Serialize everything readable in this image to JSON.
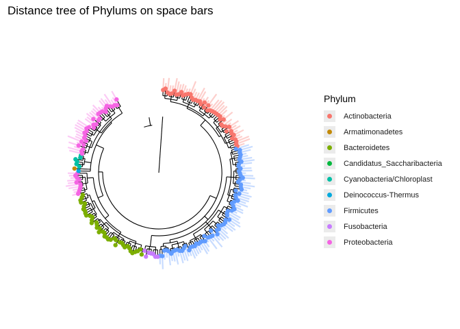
{
  "title": "Distance tree of Phylums on space bars",
  "legend": {
    "title": "Phylum",
    "position": "right",
    "items": [
      {
        "label": "Actinobacteria",
        "color": "#F8766D"
      },
      {
        "label": "Armatimonadetes",
        "color": "#C38A08"
      },
      {
        "label": "Bacteroidetes",
        "color": "#7CAE00"
      },
      {
        "label": "Candidatus_Saccharibacteria",
        "color": "#00B83E"
      },
      {
        "label": "Cyanobacteria/Chloroplast",
        "color": "#00BFA5"
      },
      {
        "label": "Deinococcus-Thermus",
        "color": "#00A9DD"
      },
      {
        "label": "Firmicutes",
        "color": "#619CFF"
      },
      {
        "label": "Fusobacteria",
        "color": "#C77CFF"
      },
      {
        "label": "Proteobacteria",
        "color": "#F564E3"
      }
    ]
  },
  "chart_data": {
    "type": "circular-phylogenetic-tree",
    "grid": false,
    "clades": [
      {
        "phylum": "Actinobacteria",
        "color": "#F8766D",
        "tips": 44,
        "has_bars": true
      },
      {
        "phylum": "Firmicutes",
        "color": "#619CFF",
        "tips": 68,
        "has_bars": true
      },
      {
        "phylum": "Fusobacteria",
        "color": "#C77CFF",
        "tips": 7,
        "has_bars": false
      },
      {
        "phylum": "Bacteroidetes",
        "color": "#7CAE00",
        "tips": 40,
        "has_bars": false
      },
      {
        "phylum": "Proteobacteria",
        "color": "#F564E3",
        "tips": 10,
        "has_bars": true
      },
      {
        "phylum": "Deinococcus-Thermus",
        "color": "#00A9DD",
        "tips": 1,
        "has_bars": false
      },
      {
        "phylum": "Armatimonadetes",
        "color": "#C38A08",
        "tips": 1,
        "has_bars": false
      },
      {
        "phylum": "Cyanobacteria/Chloroplast",
        "color": "#00BFA5",
        "tips": 6,
        "has_bars": false
      },
      {
        "phylum": "Proteobacteria",
        "color": "#F564E3",
        "tips": 30,
        "has_bars": true
      }
    ]
  }
}
